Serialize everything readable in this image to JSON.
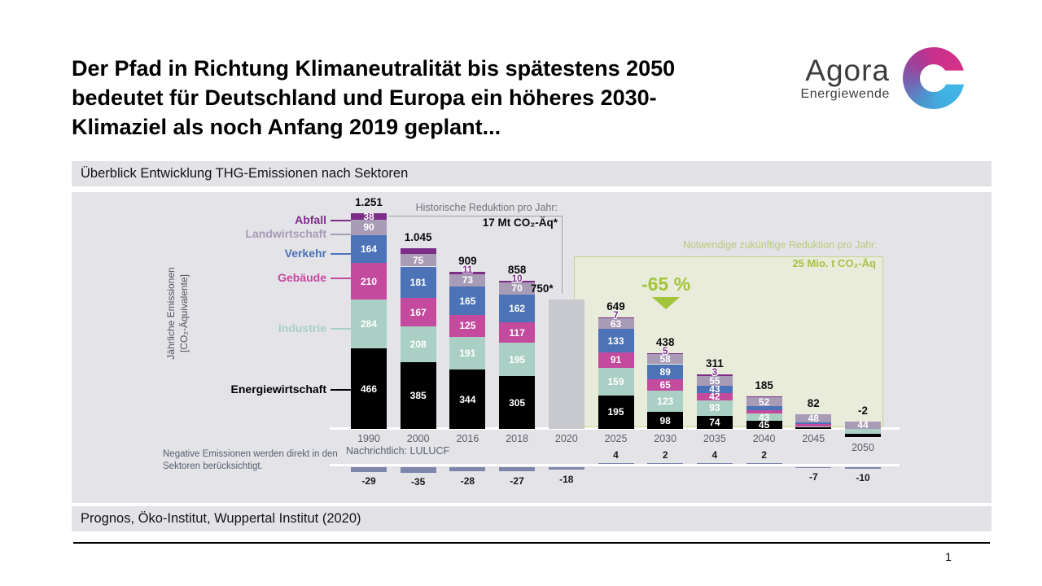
{
  "slide": {
    "title_lines": [
      "Der Pfad in Richtung Klimaneutralität bis spätestens 2050",
      "bedeutet für Deutschland und Europa ein höheres 2030-",
      "Klimaziel als noch Anfang 2019 geplant..."
    ],
    "page_number": "1"
  },
  "logo": {
    "brand": "Agora",
    "sub": "Energiewende"
  },
  "header": {
    "title": "Überblick Entwicklung THG-Emissionen nach Sektoren"
  },
  "footer": {
    "source": "Prognos, Öko-Institut, Wuppertal Institut (2020)"
  },
  "chart_data": {
    "type": "bar",
    "stacked": true,
    "ylabel_line1": "Jährliche Emissionen",
    "ylabel_line2": "[CO₂-Äquivalente]",
    "legend_position": "left",
    "sectors": [
      {
        "name": "Abfall",
        "color": "#7c2e87"
      },
      {
        "name": "Landwirtschaft",
        "color": "#a89bb6"
      },
      {
        "name": "Verkehr",
        "color": "#4c72b7"
      },
      {
        "name": "Gebäude",
        "color": "#c44a9e"
      },
      {
        "name": "Industrie",
        "color": "#aacfc4"
      },
      {
        "name": "Energiewirtschaft",
        "color": "#000000"
      }
    ],
    "columns": [
      {
        "year": "1990",
        "total": 1251,
        "total_label": "1.251",
        "segments": [
          {
            "sector": "Abfall",
            "value": 38,
            "labeled": true
          },
          {
            "sector": "Landwirtschaft",
            "value": 90,
            "labeled": true
          },
          {
            "sector": "Verkehr",
            "value": 164,
            "labeled": true
          },
          {
            "sector": "Gebäude",
            "value": 210,
            "labeled": true
          },
          {
            "sector": "Industrie",
            "value": 284,
            "labeled": true
          },
          {
            "sector": "Energiewirtschaft",
            "value": 466,
            "labeled": true
          }
        ]
      },
      {
        "year": "2000",
        "total": 1045,
        "total_label": "1.045",
        "segments": [
          {
            "sector": "Abfall",
            "value": 29,
            "labeled": true
          },
          {
            "sector": "Landwirtschaft",
            "value": 75,
            "labeled": true
          },
          {
            "sector": "Verkehr",
            "value": 181,
            "labeled": true
          },
          {
            "sector": "Gebäude",
            "value": 167,
            "labeled": true
          },
          {
            "sector": "Industrie",
            "value": 208,
            "labeled": true
          },
          {
            "sector": "Energiewirtschaft",
            "value": 385,
            "labeled": true
          }
        ]
      },
      {
        "year": "2016",
        "total": 909,
        "total_label": "909",
        "segments": [
          {
            "sector": "Abfall",
            "value": 11,
            "labeled": true,
            "label_position": "above"
          },
          {
            "sector": "Landwirtschaft",
            "value": 73,
            "labeled": true
          },
          {
            "sector": "Verkehr",
            "value": 165,
            "labeled": true
          },
          {
            "sector": "Gebäude",
            "value": 125,
            "labeled": true
          },
          {
            "sector": "Industrie",
            "value": 191,
            "labeled": true
          },
          {
            "sector": "Energiewirtschaft",
            "value": 344,
            "labeled": true
          }
        ]
      },
      {
        "year": "2018",
        "total": 858,
        "total_label": "858",
        "segments": [
          {
            "sector": "Abfall",
            "value": 10,
            "labeled": true,
            "label_position": "above"
          },
          {
            "sector": "Landwirtschaft",
            "value": 70,
            "labeled": true
          },
          {
            "sector": "Verkehr",
            "value": 162,
            "labeled": true
          },
          {
            "sector": "Gebäude",
            "value": 117,
            "labeled": true
          },
          {
            "sector": "Industrie",
            "value": 195,
            "labeled": true
          },
          {
            "sector": "Energiewirtschaft",
            "value": 305,
            "labeled": true
          }
        ]
      },
      {
        "year": "2020",
        "total": 750,
        "total_label": "750*",
        "solid": true,
        "color": "#c8c8cf",
        "label_dx": -30
      },
      {
        "year": "2025",
        "total": 649,
        "total_label": "649",
        "segments": [
          {
            "sector": "Abfall",
            "value": 7,
            "labeled": true,
            "label_position": "above"
          },
          {
            "sector": "Landwirtschaft",
            "value": 63,
            "labeled": true
          },
          {
            "sector": "Verkehr",
            "value": 133,
            "labeled": true
          },
          {
            "sector": "Gebäude",
            "value": 91,
            "labeled": true
          },
          {
            "sector": "Industrie",
            "value": 159,
            "labeled": true
          },
          {
            "sector": "Energiewirtschaft",
            "value": 195,
            "labeled": true
          }
        ]
      },
      {
        "year": "2030",
        "total": 438,
        "total_label": "438",
        "segments": [
          {
            "sector": "Abfall",
            "value": 5,
            "labeled": true,
            "label_position": "above"
          },
          {
            "sector": "Landwirtschaft",
            "value": 58,
            "labeled": true
          },
          {
            "sector": "Verkehr",
            "value": 89,
            "labeled": true
          },
          {
            "sector": "Gebäude",
            "value": 65,
            "labeled": true
          },
          {
            "sector": "Industrie",
            "value": 123,
            "labeled": true
          },
          {
            "sector": "Energiewirtschaft",
            "value": 98,
            "labeled": true
          }
        ]
      },
      {
        "year": "2035",
        "total": 311,
        "total_label": "311",
        "segments": [
          {
            "sector": "Abfall",
            "value": 3,
            "labeled": true,
            "label_position": "above"
          },
          {
            "sector": "Landwirtschaft",
            "value": 55,
            "labeled": true
          },
          {
            "sector": "Verkehr",
            "value": 43,
            "labeled": true
          },
          {
            "sector": "Gebäude",
            "value": 42,
            "labeled": true
          },
          {
            "sector": "Industrie",
            "value": 93,
            "labeled": true
          },
          {
            "sector": "Energiewirtschaft",
            "value": 74,
            "labeled": true
          }
        ]
      },
      {
        "year": "2040",
        "total": 185,
        "total_label": "185",
        "segments": [
          {
            "sector": "Abfall",
            "value": 2,
            "labeled": false,
            "estimated": true
          },
          {
            "sector": "Landwirtschaft",
            "value": 52,
            "labeled": true
          },
          {
            "sector": "Verkehr",
            "value": 22,
            "labeled": false,
            "estimated": true
          },
          {
            "sector": "Gebäude",
            "value": 21,
            "labeled": false,
            "estimated": true
          },
          {
            "sector": "Industrie",
            "value": 43,
            "labeled": true
          },
          {
            "sector": "Energiewirtschaft",
            "value": 45,
            "labeled": true
          }
        ]
      },
      {
        "year": "2045",
        "total": 82,
        "total_label": "82",
        "segments": [
          {
            "sector": "Landwirtschaft",
            "value": 48,
            "labeled": true
          },
          {
            "sector": "Verkehr",
            "value": 5,
            "labeled": false,
            "estimated": true
          },
          {
            "sector": "Gebäude",
            "value": 14,
            "labeled": false,
            "estimated": true
          },
          {
            "sector": "Industrie",
            "value": 6,
            "labeled": false,
            "estimated": true
          },
          {
            "sector": "Energiewirtschaft",
            "value": 9,
            "labeled": false,
            "estimated": true
          }
        ]
      },
      {
        "year": "2050",
        "total": -2,
        "total_label": "-2",
        "segments": [
          {
            "sector": "Landwirtschaft",
            "value": 44,
            "labeled": true
          },
          {
            "sector": "Industrie",
            "value": -28,
            "labeled": false,
            "estimated": true
          },
          {
            "sector": "Energiewirtschaft",
            "value": -18,
            "labeled": false,
            "estimated": true
          }
        ]
      }
    ],
    "lulucf": {
      "label": "Nachrichtlich: LULUCF",
      "color": "#7e86ac",
      "values": [
        {
          "year": "1990",
          "value": -29
        },
        {
          "year": "2000",
          "value": -35
        },
        {
          "year": "2016",
          "value": -28
        },
        {
          "year": "2018",
          "value": -27
        },
        {
          "year": "2020",
          "value": -18
        },
        {
          "year": "2025",
          "value": 4
        },
        {
          "year": "2030",
          "value": 2
        },
        {
          "year": "2035",
          "value": 4
        },
        {
          "year": "2040",
          "value": 2
        },
        {
          "year": "2045",
          "value": -7
        },
        {
          "year": "2050",
          "value": -10
        }
      ]
    },
    "annotations": {
      "historic_line1": "Historische Reduktion pro Jahr:",
      "historic_line2": "17 Mt CO₂-Äq*",
      "future_line1": "Notwendige zukünftige Reduktion pro Jahr:",
      "future_line2": "25 Mio. t CO₂-Äq",
      "reduction_badge": "-65 %",
      "negative_note": "Negative Emissionen werden direkt in den Sektoren berücksichtigt."
    }
  }
}
